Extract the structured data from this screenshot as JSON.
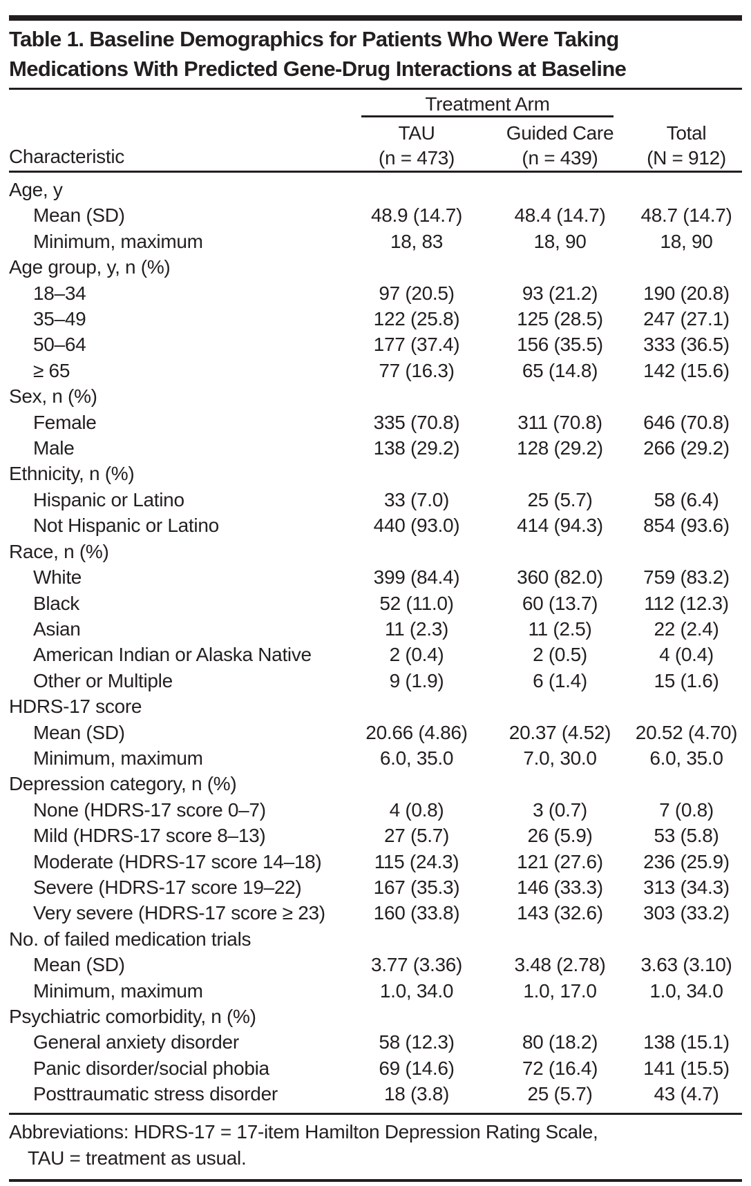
{
  "title": {
    "line1": "Table 1. Baseline Demographics for Patients Who Were Taking",
    "line2": "Medications With Predicted Gene-Drug Interactions at Baseline"
  },
  "header": {
    "span_label": "Treatment Arm",
    "characteristic_label": "Characteristic",
    "columns": [
      {
        "name": "TAU",
        "sub": "(n = 473)"
      },
      {
        "name": "Guided Care",
        "sub": "(n = 439)"
      },
      {
        "name": "Total",
        "sub": "(N = 912)"
      }
    ]
  },
  "rows": [
    {
      "label": "Age, y",
      "indent": false,
      "values": [
        "",
        "",
        ""
      ]
    },
    {
      "label": "Mean (SD)",
      "indent": true,
      "values": [
        "48.9 (14.7)",
        "48.4 (14.7)",
        "48.7 (14.7)"
      ]
    },
    {
      "label": "Minimum, maximum",
      "indent": true,
      "values": [
        "18, 83",
        "18, 90",
        "18, 90"
      ]
    },
    {
      "label": "Age group, y, n (%)",
      "indent": false,
      "values": [
        "",
        "",
        ""
      ]
    },
    {
      "label": "18–34",
      "indent": true,
      "values": [
        "97 (20.5)",
        "93 (21.2)",
        "190 (20.8)"
      ]
    },
    {
      "label": "35–49",
      "indent": true,
      "values": [
        "122 (25.8)",
        "125 (28.5)",
        "247 (27.1)"
      ]
    },
    {
      "label": "50–64",
      "indent": true,
      "values": [
        "177 (37.4)",
        "156 (35.5)",
        "333 (36.5)"
      ]
    },
    {
      "label": "≥ 65",
      "indent": true,
      "values": [
        "77 (16.3)",
        "65 (14.8)",
        "142 (15.6)"
      ]
    },
    {
      "label": "Sex, n (%)",
      "indent": false,
      "values": [
        "",
        "",
        ""
      ]
    },
    {
      "label": "Female",
      "indent": true,
      "values": [
        "335 (70.8)",
        "311 (70.8)",
        "646 (70.8)"
      ]
    },
    {
      "label": "Male",
      "indent": true,
      "values": [
        "138 (29.2)",
        "128 (29.2)",
        "266 (29.2)"
      ]
    },
    {
      "label": "Ethnicity, n (%)",
      "indent": false,
      "values": [
        "",
        "",
        ""
      ]
    },
    {
      "label": "Hispanic or Latino",
      "indent": true,
      "values": [
        "33 (7.0)",
        "25 (5.7)",
        "58 (6.4)"
      ]
    },
    {
      "label": "Not Hispanic or Latino",
      "indent": true,
      "values": [
        "440 (93.0)",
        "414 (94.3)",
        "854 (93.6)"
      ]
    },
    {
      "label": "Race, n (%)",
      "indent": false,
      "values": [
        "",
        "",
        ""
      ]
    },
    {
      "label": "White",
      "indent": true,
      "values": [
        "399 (84.4)",
        "360 (82.0)",
        "759 (83.2)"
      ]
    },
    {
      "label": "Black",
      "indent": true,
      "values": [
        "52 (11.0)",
        "60 (13.7)",
        "112 (12.3)"
      ]
    },
    {
      "label": "Asian",
      "indent": true,
      "values": [
        "11 (2.3)",
        "11 (2.5)",
        "22 (2.4)"
      ]
    },
    {
      "label": "American Indian or Alaska Native",
      "indent": true,
      "values": [
        "2 (0.4)",
        "2 (0.5)",
        "4 (0.4)"
      ]
    },
    {
      "label": "Other or Multiple",
      "indent": true,
      "values": [
        "9 (1.9)",
        "6 (1.4)",
        "15 (1.6)"
      ]
    },
    {
      "label": "HDRS-17 score",
      "indent": false,
      "values": [
        "",
        "",
        ""
      ]
    },
    {
      "label": "Mean (SD)",
      "indent": true,
      "values": [
        "20.66 (4.86)",
        "20.37 (4.52)",
        "20.52 (4.70)"
      ]
    },
    {
      "label": "Minimum, maximum",
      "indent": true,
      "values": [
        "6.0, 35.0",
        "7.0, 30.0",
        "6.0, 35.0"
      ]
    },
    {
      "label": "Depression category, n (%)",
      "indent": false,
      "values": [
        "",
        "",
        ""
      ]
    },
    {
      "label": "None (HDRS-17 score 0–7)",
      "indent": true,
      "values": [
        "4 (0.8)",
        "3 (0.7)",
        "7 (0.8)"
      ]
    },
    {
      "label": "Mild (HDRS-17 score 8–13)",
      "indent": true,
      "values": [
        "27 (5.7)",
        "26 (5.9)",
        "53 (5.8)"
      ]
    },
    {
      "label": "Moderate (HDRS-17 score 14–18)",
      "indent": true,
      "values": [
        "115 (24.3)",
        "121 (27.6)",
        "236 (25.9)"
      ]
    },
    {
      "label": "Severe (HDRS-17 score 19–22)",
      "indent": true,
      "values": [
        "167 (35.3)",
        "146 (33.3)",
        "313 (34.3)"
      ]
    },
    {
      "label": "Very severe (HDRS-17 score ≥ 23)",
      "indent": true,
      "values": [
        "160 (33.8)",
        "143 (32.6)",
        "303 (33.2)"
      ]
    },
    {
      "label": "No. of failed medication trials",
      "indent": false,
      "values": [
        "",
        "",
        ""
      ]
    },
    {
      "label": "Mean (SD)",
      "indent": true,
      "values": [
        "3.77 (3.36)",
        "3.48 (2.78)",
        "3.63 (3.10)"
      ]
    },
    {
      "label": "Minimum, maximum",
      "indent": true,
      "values": [
        "1.0, 34.0",
        "1.0, 17.0",
        "1.0, 34.0"
      ]
    },
    {
      "label": "Psychiatric comorbidity, n (%)",
      "indent": false,
      "values": [
        "",
        "",
        ""
      ]
    },
    {
      "label": "General anxiety disorder",
      "indent": true,
      "values": [
        "58 (12.3)",
        "80 (18.2)",
        "138 (15.1)"
      ]
    },
    {
      "label": "Panic disorder/social phobia",
      "indent": true,
      "values": [
        "69 (14.6)",
        "72 (16.4)",
        "141 (15.5)"
      ]
    },
    {
      "label": "Posttraumatic stress disorder",
      "indent": true,
      "values": [
        "18 (3.8)",
        "25 (5.7)",
        "43 (4.7)"
      ]
    }
  ],
  "footnote": {
    "line1": "Abbreviations: HDRS-17 = 17-item Hamilton Depression Rating Scale,",
    "line2": "TAU = treatment as usual."
  },
  "colors": {
    "ink": "#231f20",
    "background": "#ffffff"
  }
}
